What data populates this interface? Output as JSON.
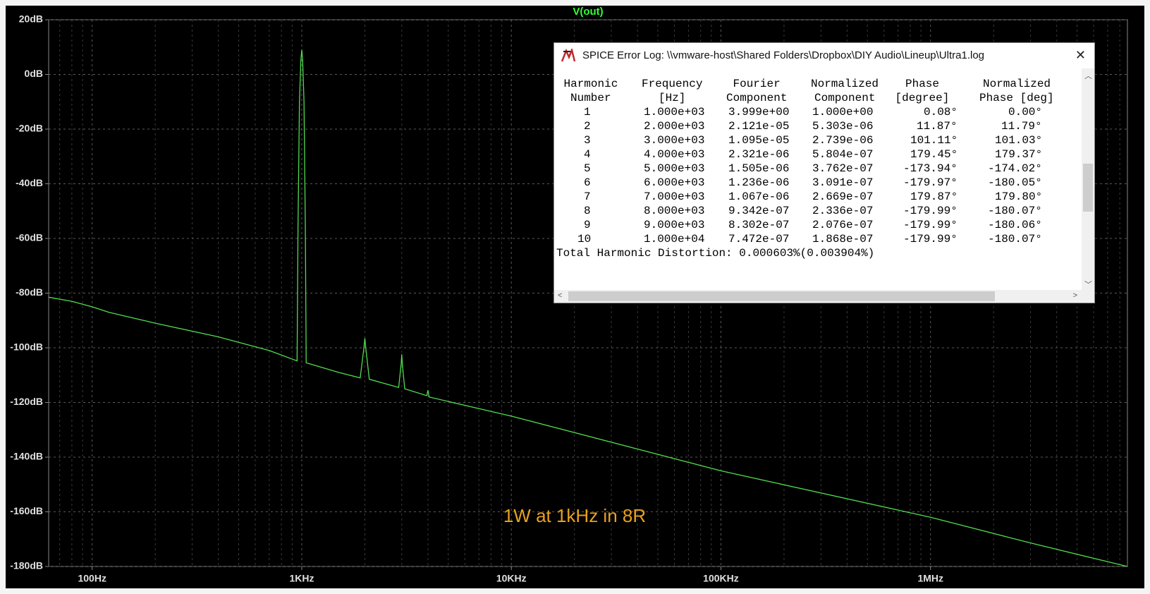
{
  "chart_data": {
    "type": "line",
    "series": [
      {
        "name": "V(out)",
        "color": "#4fdc4f",
        "values": [
          -81.5,
          -83,
          -85,
          -87,
          -91,
          -96,
          -101,
          -104.8,
          -55,
          -10,
          5,
          9,
          5,
          -10,
          -55,
          -105.5,
          -109,
          -111,
          -100,
          -96.5,
          -100,
          -111.5,
          -114.5,
          -106,
          -102.4,
          -106,
          -115,
          -117.5,
          -115.5,
          -118,
          -125,
          -145,
          -162,
          -171.4,
          -180
        ]
      }
    ],
    "x": [
      62,
      80,
      100,
      120,
      200,
      400,
      700,
      950,
      960,
      975,
      990,
      1000,
      1010,
      1025,
      1040,
      1050,
      1500,
      1900,
      1980,
      2000,
      2020,
      2100,
      2900,
      2980,
      3000,
      3020,
      3100,
      3950,
      4000,
      4050,
      10000,
      100000,
      1000000,
      3000000,
      8700000
    ],
    "xlim": [
      62,
      8700000
    ],
    "xlog": true,
    "xticks": [
      {
        "value": 100,
        "label": "100Hz"
      },
      {
        "value": 1000,
        "label": "1KHz"
      },
      {
        "value": 10000,
        "label": "10KHz"
      },
      {
        "value": 100000,
        "label": "100KHz"
      },
      {
        "value": 1000000,
        "label": "1MHz"
      }
    ],
    "ylim": [
      -180,
      20
    ],
    "yticks": [
      {
        "value": 20,
        "label": "20dB"
      },
      {
        "value": 0,
        "label": "0dB"
      },
      {
        "value": -20,
        "label": "-20dB"
      },
      {
        "value": -40,
        "label": "-40dB"
      },
      {
        "value": -60,
        "label": "-60dB"
      },
      {
        "value": -80,
        "label": "-80dB"
      },
      {
        "value": -100,
        "label": "-100dB"
      },
      {
        "value": -120,
        "label": "-120dB"
      },
      {
        "value": -140,
        "label": "-140dB"
      },
      {
        "value": -160,
        "label": "-160dB"
      },
      {
        "value": -180,
        "label": "-180dB"
      }
    ],
    "grid": true,
    "annotation": "1W at 1kHz in 8R"
  },
  "dialog": {
    "title": "SPICE Error Log: \\\\vmware-host\\Shared Folders\\Dropbox\\DIY Audio\\Lineup\\Ultra1.log",
    "header": [
      [
        "Harmonic",
        "Number"
      ],
      [
        "Frequency",
        "[Hz]"
      ],
      [
        "Fourier",
        "Component"
      ],
      [
        "Normalized",
        "Component"
      ],
      [
        "Phase",
        "[degree]"
      ],
      [
        "Normalized",
        "Phase [deg]"
      ]
    ],
    "rows": [
      [
        "1",
        "1.000e+03",
        "3.999e+00",
        "1.000e+00",
        "0.08°",
        "0.00°"
      ],
      [
        "2",
        "2.000e+03",
        "2.121e-05",
        "5.303e-06",
        "11.87°",
        "11.79°"
      ],
      [
        "3",
        "3.000e+03",
        "1.095e-05",
        "2.739e-06",
        "101.11°",
        "101.03°"
      ],
      [
        "4",
        "4.000e+03",
        "2.321e-06",
        "5.804e-07",
        "179.45°",
        "179.37°"
      ],
      [
        "5",
        "5.000e+03",
        "1.505e-06",
        "3.762e-07",
        "-173.94°",
        "-174.02°"
      ],
      [
        "6",
        "6.000e+03",
        "1.236e-06",
        "3.091e-07",
        "-179.97°",
        "-180.05°"
      ],
      [
        "7",
        "7.000e+03",
        "1.067e-06",
        "2.669e-07",
        "179.87°",
        "179.80°"
      ],
      [
        "8",
        "8.000e+03",
        "9.342e-07",
        "2.336e-07",
        "-179.99°",
        "-180.07°"
      ],
      [
        "9",
        "9.000e+03",
        "8.302e-07",
        "2.076e-07",
        "-179.99°",
        "-180.06°"
      ],
      [
        "10",
        "1.000e+04",
        "7.472e-07",
        "1.868e-07",
        "-179.99°",
        "-180.07°"
      ]
    ],
    "summary": "Total Harmonic Distortion: 0.000603%(0.003904%)"
  }
}
